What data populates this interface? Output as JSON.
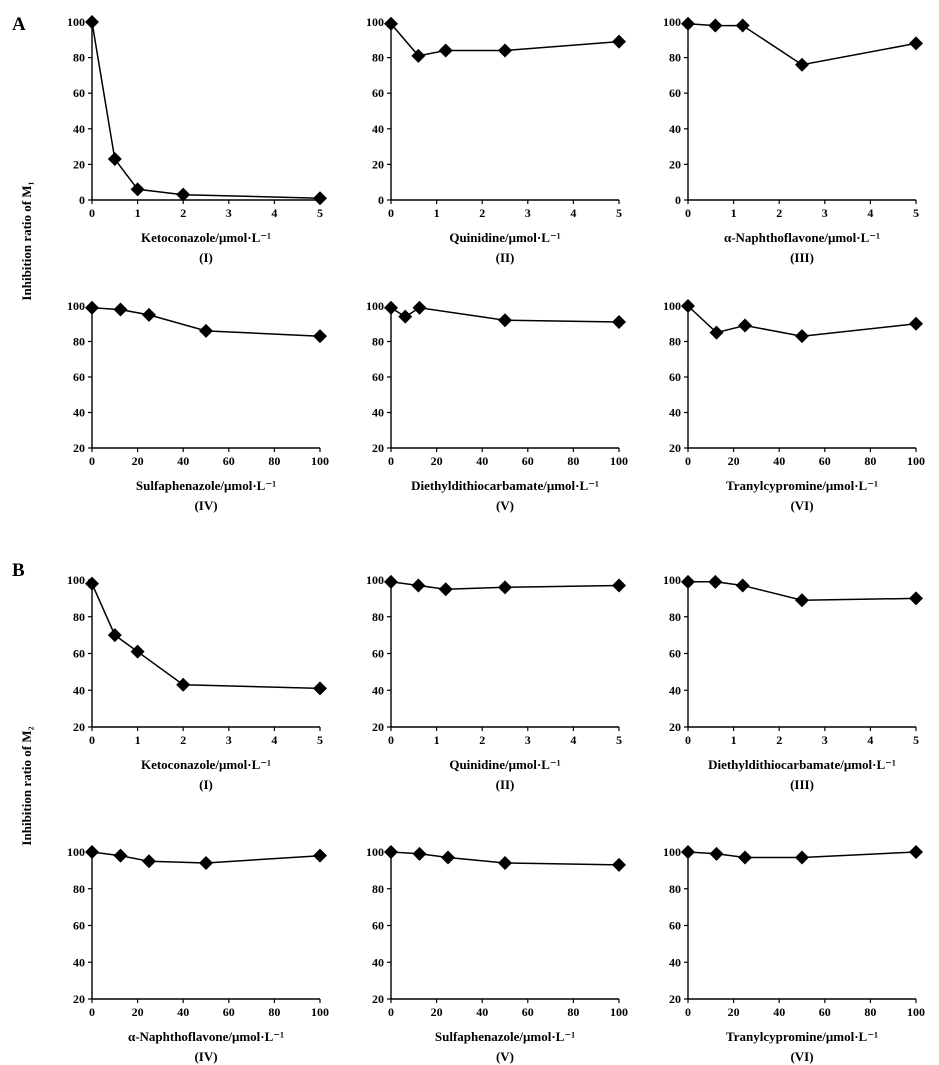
{
  "figure": {
    "panel_A_letter": "A",
    "panel_B_letter": "B",
    "panel_A_ylabel": "Inhibition ratio of M₁",
    "panel_B_ylabel": "Inhibition ratio of M₂"
  },
  "chart_data": [
    {
      "type": "line",
      "group": "A",
      "xlabel": "Ketoconazole/μmol·L⁻¹",
      "roman": "(I)",
      "xlim": [
        0,
        5
      ],
      "xticks": [
        0,
        1,
        2,
        3,
        4,
        5
      ],
      "ylim": [
        0,
        100
      ],
      "yticks": [
        0,
        20,
        40,
        60,
        80,
        100
      ],
      "x": [
        0,
        0.5,
        1,
        2,
        5
      ],
      "y": [
        100,
        23,
        6,
        3,
        1
      ]
    },
    {
      "type": "line",
      "group": "A",
      "xlabel": "Quinidine/μmol·L⁻¹",
      "roman": "(II)",
      "xlim": [
        0,
        5
      ],
      "xticks": [
        0,
        1,
        2,
        3,
        4,
        5
      ],
      "ylim": [
        0,
        100
      ],
      "yticks": [
        0,
        20,
        40,
        60,
        80,
        100
      ],
      "x": [
        0,
        0.6,
        1.2,
        2.5,
        5
      ],
      "y": [
        99,
        81,
        84,
        84,
        89
      ]
    },
    {
      "type": "line",
      "group": "A",
      "xlabel": "α-Naphthoflavone/μmol·L⁻¹",
      "roman": "(III)",
      "xlim": [
        0,
        5
      ],
      "xticks": [
        0,
        1,
        2,
        3,
        4,
        5
      ],
      "ylim": [
        0,
        100
      ],
      "yticks": [
        0,
        20,
        40,
        60,
        80,
        100
      ],
      "x": [
        0,
        0.6,
        1.2,
        2.5,
        5
      ],
      "y": [
        99,
        98,
        98,
        76,
        88
      ]
    },
    {
      "type": "line",
      "group": "A",
      "xlabel": "Sulfaphenazole/μmol·L⁻¹",
      "roman": "(IV)",
      "xlim": [
        0,
        100
      ],
      "xticks": [
        0,
        20,
        40,
        60,
        80,
        100
      ],
      "ylim": [
        20,
        100
      ],
      "yticks": [
        20,
        40,
        60,
        80,
        100
      ],
      "x": [
        0,
        12.5,
        25,
        50,
        100
      ],
      "y": [
        99,
        98,
        95,
        86,
        83
      ]
    },
    {
      "type": "line",
      "group": "A",
      "xlabel": "Diethyldithiocarbamate/μmol·L⁻¹",
      "roman": "(V)",
      "xlim": [
        0,
        100
      ],
      "xticks": [
        0,
        20,
        40,
        60,
        80,
        100
      ],
      "ylim": [
        20,
        100
      ],
      "yticks": [
        20,
        40,
        60,
        80,
        100
      ],
      "x": [
        0,
        6.25,
        12.5,
        50,
        100
      ],
      "y": [
        99,
        94,
        99,
        92,
        91
      ]
    },
    {
      "type": "line",
      "group": "A",
      "xlabel": "Tranylcypromine/μmol·L⁻¹",
      "roman": "(VI)",
      "xlim": [
        0,
        100
      ],
      "xticks": [
        0,
        20,
        40,
        60,
        80,
        100
      ],
      "ylim": [
        20,
        100
      ],
      "yticks": [
        20,
        40,
        60,
        80,
        100
      ],
      "x": [
        0,
        12.5,
        25,
        50,
        100
      ],
      "y": [
        100,
        85,
        89,
        83,
        90
      ]
    },
    {
      "type": "line",
      "group": "B",
      "xlabel": "Ketoconazole/μmol·L⁻¹",
      "roman": "(I)",
      "xlim": [
        0,
        5
      ],
      "xticks": [
        0,
        1,
        2,
        3,
        4,
        5
      ],
      "ylim": [
        20,
        100
      ],
      "yticks": [
        20,
        40,
        60,
        80,
        100
      ],
      "x": [
        0,
        0.5,
        1,
        2,
        5
      ],
      "y": [
        98,
        70,
        61,
        43,
        41
      ]
    },
    {
      "type": "line",
      "group": "B",
      "xlabel": "Quinidine/μmol·L⁻¹",
      "roman": "(II)",
      "xlim": [
        0,
        5
      ],
      "xticks": [
        0,
        1,
        2,
        3,
        4,
        5
      ],
      "ylim": [
        20,
        100
      ],
      "yticks": [
        20,
        40,
        60,
        80,
        100
      ],
      "x": [
        0,
        0.6,
        1.2,
        2.5,
        5
      ],
      "y": [
        99,
        97,
        95,
        96,
        97
      ]
    },
    {
      "type": "line",
      "group": "B",
      "xlabel": "Diethyldithiocarbamate/μmol·L⁻¹",
      "roman": "(III)",
      "xlim": [
        0,
        5
      ],
      "xticks": [
        0,
        1,
        2,
        3,
        4,
        5
      ],
      "ylim": [
        20,
        100
      ],
      "yticks": [
        20,
        40,
        60,
        80,
        100
      ],
      "x": [
        0,
        0.6,
        1.2,
        2.5,
        5
      ],
      "y": [
        99,
        99,
        97,
        89,
        90
      ]
    },
    {
      "type": "line",
      "group": "B",
      "xlabel": "α-Naphthoflavone/μmol·L⁻¹",
      "roman": "(IV)",
      "xlim": [
        0,
        100
      ],
      "xticks": [
        0,
        20,
        40,
        60,
        80,
        100
      ],
      "ylim": [
        20,
        100
      ],
      "yticks": [
        20,
        40,
        60,
        80,
        100
      ],
      "x": [
        0,
        12.5,
        25,
        50,
        100
      ],
      "y": [
        100,
        98,
        95,
        94,
        98
      ]
    },
    {
      "type": "line",
      "group": "B",
      "xlabel": "Sulfaphenazole/μmol·L⁻¹",
      "roman": "(V)",
      "xlim": [
        0,
        100
      ],
      "xticks": [
        0,
        20,
        40,
        60,
        80,
        100
      ],
      "ylim": [
        20,
        100
      ],
      "yticks": [
        20,
        40,
        60,
        80,
        100
      ],
      "x": [
        0,
        12.5,
        25,
        50,
        100
      ],
      "y": [
        100,
        99,
        97,
        94,
        93
      ]
    },
    {
      "type": "line",
      "group": "B",
      "xlabel": "Tranylcypromine/μmol·L⁻¹",
      "roman": "(VI)",
      "xlim": [
        0,
        100
      ],
      "xticks": [
        0,
        20,
        40,
        60,
        80,
        100
      ],
      "ylim": [
        20,
        100
      ],
      "yticks": [
        20,
        40,
        60,
        80,
        100
      ],
      "x": [
        0,
        12.5,
        25,
        50,
        100
      ],
      "y": [
        100,
        99,
        97,
        97,
        100
      ]
    }
  ]
}
